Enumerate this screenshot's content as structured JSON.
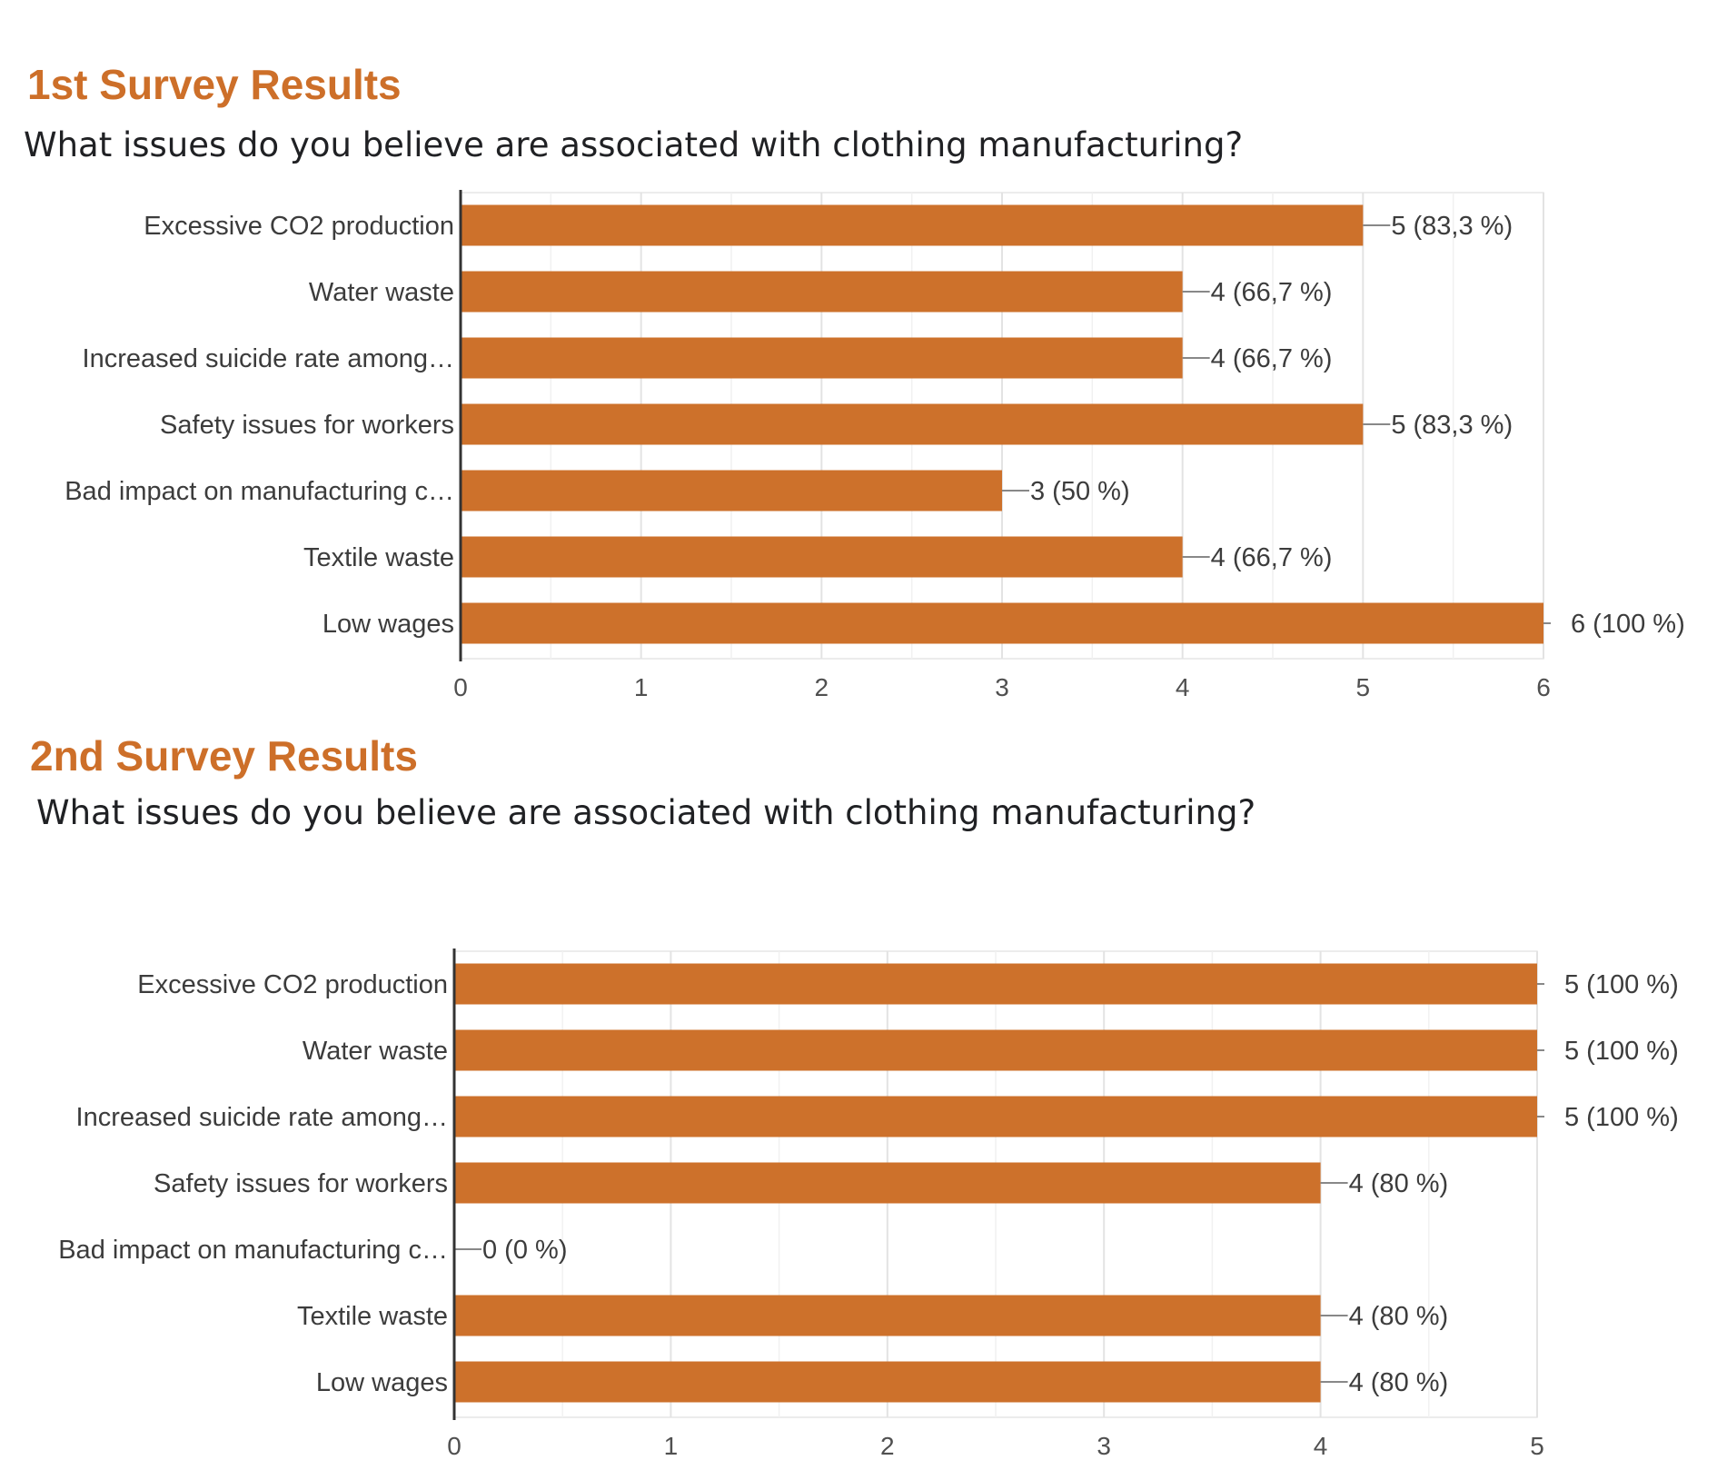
{
  "surveys": [
    {
      "title": "1st Survey Results",
      "question": "What issues do you believe are associated with clothing manufacturing?"
    },
    {
      "title": "2nd Survey Results",
      "question": "What issues do you believe are associated with clothing manufacturing?"
    }
  ],
  "colors": {
    "bar": "#cd712b",
    "title": "#cd6f29"
  },
  "chart_data": [
    {
      "type": "bar",
      "orientation": "horizontal",
      "categories": [
        "Excessive CO2 production",
        "Water waste",
        "Increased suicide rate among…",
        "Safety issues for workers",
        "Bad impact on manufacturing c…",
        "Textile waste",
        "Low wages"
      ],
      "values": [
        5,
        4,
        4,
        5,
        3,
        4,
        6
      ],
      "value_labels": [
        "5 (83,3 %)",
        "4 (66,7 %)",
        "4 (66,7 %)",
        "5 (83,3 %)",
        "3 (50 %)",
        "4 (66,7 %)",
        "6 (100 %)"
      ],
      "xlim": [
        0,
        6
      ],
      "xticks": [
        0,
        1,
        2,
        3,
        4,
        5,
        6
      ],
      "grid": true
    },
    {
      "type": "bar",
      "orientation": "horizontal",
      "categories": [
        "Excessive CO2 production",
        "Water waste",
        "Increased suicide rate among…",
        "Safety issues for workers",
        "Bad impact on manufacturing c…",
        "Textile waste",
        "Low wages"
      ],
      "values": [
        5,
        5,
        5,
        4,
        0,
        4,
        4
      ],
      "value_labels": [
        "5 (100 %)",
        "5 (100 %)",
        "5 (100 %)",
        "4 (80 %)",
        "0 (0 %)",
        "4 (80 %)",
        "4 (80 %)"
      ],
      "xlim": [
        0,
        5
      ],
      "xticks": [
        0,
        1,
        2,
        3,
        4,
        5
      ],
      "grid": true
    }
  ]
}
